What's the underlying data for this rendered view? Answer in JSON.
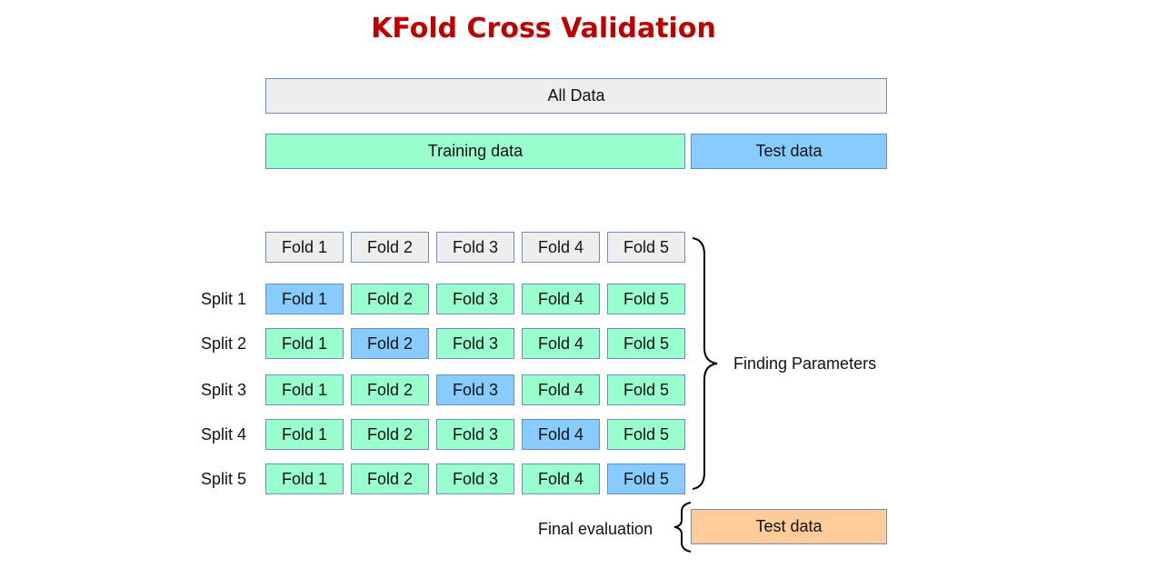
{
  "title": "KFold Cross Validation",
  "all_data_label": "All Data",
  "training_label": "Training data",
  "test_label": "Test data",
  "folds": [
    "Fold 1",
    "Fold 2",
    "Fold 3",
    "Fold 4",
    "Fold 5"
  ],
  "splits": [
    {
      "label": "Split 1",
      "test_fold": 1
    },
    {
      "label": "Split 2",
      "test_fold": 2
    },
    {
      "label": "Split 3",
      "test_fold": 3
    },
    {
      "label": "Split 4",
      "test_fold": 4
    },
    {
      "label": "Split 5",
      "test_fold": 5
    }
  ],
  "finding_parameters_label": "Finding Parameters",
  "final_evaluation_label": "Final evaluation",
  "final_test_label": "Test data",
  "colors": {
    "title": "#c00000",
    "all_data": "#eeeeee",
    "training": "#99ffcc",
    "test": "#88ccff",
    "final_test": "#ffcc99",
    "border": "#6c8ebf"
  }
}
